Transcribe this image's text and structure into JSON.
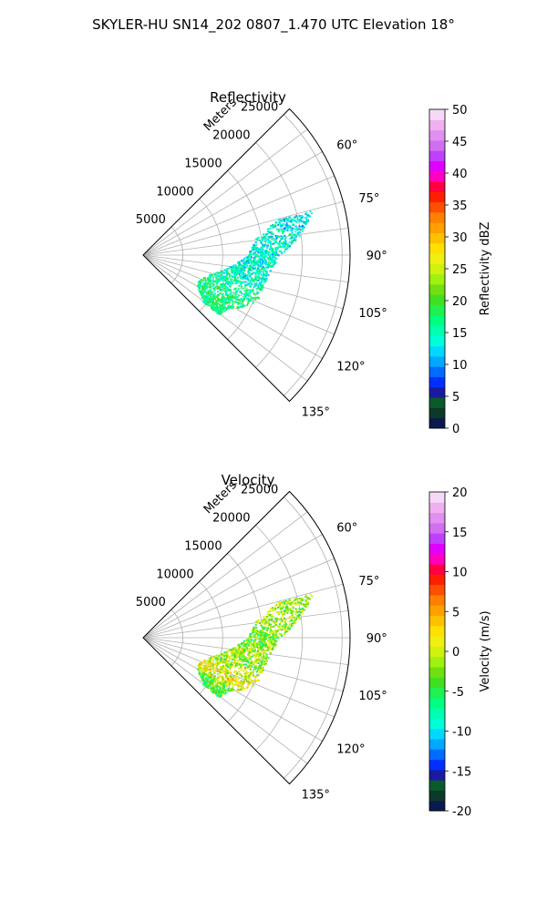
{
  "figure": {
    "title": "SKYLER-HU  SN14_202  0807_1.470 UTC Elevation 18°"
  },
  "chart_data": [
    {
      "type": "polar-sector",
      "title": "Reflectivity",
      "range_label": "Meters",
      "range_ticks": [
        5000,
        10000,
        15000,
        20000,
        25000
      ],
      "range_max": 26000,
      "azimuth_range": [
        45,
        135
      ],
      "azimuth_ticks": [
        60,
        75,
        90,
        105,
        120,
        135
      ],
      "colorbar": {
        "label": "Reflectivity dBZ",
        "range": [
          0,
          50
        ],
        "ticks": [
          0,
          5,
          10,
          15,
          20,
          25,
          30,
          35,
          40,
          45,
          50
        ],
        "colors": [
          "#0a1a4e",
          "#0c3a2a",
          "#0a5a2a",
          "#1a1aa0",
          "#0030ff",
          "#006cff",
          "#00a8ff",
          "#00d8ff",
          "#00ffd8",
          "#00ffb0",
          "#00ff80",
          "#20f050",
          "#40e020",
          "#70e010",
          "#a0f010",
          "#d0f010",
          "#f0f010",
          "#ffe000",
          "#ffc000",
          "#ffa000",
          "#ff8000",
          "#ff5000",
          "#ff2000",
          "#ff0040",
          "#ff00c0",
          "#e000ff",
          "#c040ff",
          "#d070f0",
          "#e090f0",
          "#f0b0f0",
          "#f8d8f8"
        ]
      },
      "echo_band": [
        {
          "azimuth": 75,
          "range_from": 17000,
          "range_to": 22000,
          "value": 13
        },
        {
          "azimuth": 82,
          "range_from": 14000,
          "range_to": 20000,
          "value": 14
        },
        {
          "azimuth": 90,
          "range_from": 13000,
          "range_to": 17000,
          "value": 14
        },
        {
          "azimuth": 97,
          "range_from": 11000,
          "range_to": 16000,
          "value": 14
        },
        {
          "azimuth": 104,
          "range_from": 9000,
          "range_to": 15500,
          "value": 15
        },
        {
          "azimuth": 110,
          "range_from": 8000,
          "range_to": 15500,
          "value": 16
        },
        {
          "azimuth": 116,
          "range_from": 7500,
          "range_to": 14500,
          "value": 17
        },
        {
          "azimuth": 122,
          "range_from": 8000,
          "range_to": 12500,
          "value": 18
        },
        {
          "azimuth": 128,
          "range_from": 9500,
          "range_to": 12000,
          "value": 16
        }
      ]
    },
    {
      "type": "polar-sector",
      "title": "Velocity",
      "range_label": "Meters",
      "range_ticks": [
        5000,
        10000,
        15000,
        20000,
        25000
      ],
      "range_max": 26000,
      "azimuth_range": [
        45,
        135
      ],
      "azimuth_ticks": [
        60,
        75,
        90,
        105,
        120,
        135
      ],
      "colorbar": {
        "label": "Velocity (m/s)",
        "range": [
          -20,
          20
        ],
        "ticks": [
          -20,
          -15,
          -10,
          -5,
          0,
          5,
          10,
          15,
          20
        ],
        "colors": [
          "#0a1a4e",
          "#0c3a2a",
          "#0a5a2a",
          "#1a1aa0",
          "#0030ff",
          "#006cff",
          "#00a8ff",
          "#00d8ff",
          "#00ffd8",
          "#00ffb0",
          "#00ff80",
          "#20f050",
          "#40e020",
          "#70e010",
          "#a0f010",
          "#d0f010",
          "#f0f010",
          "#ffe000",
          "#ffc000",
          "#ffa000",
          "#ff8000",
          "#ff5000",
          "#ff2000",
          "#ff0040",
          "#ff00c0",
          "#e000ff",
          "#c040ff",
          "#d070f0",
          "#e090f0",
          "#f0b0f0",
          "#f8d8f8"
        ]
      },
      "echo_band": [
        {
          "azimuth": 75,
          "range_from": 17000,
          "range_to": 22000,
          "value": -1
        },
        {
          "azimuth": 82,
          "range_from": 14000,
          "range_to": 20000,
          "value": -1
        },
        {
          "azimuth": 90,
          "range_from": 13000,
          "range_to": 17000,
          "value": -3
        },
        {
          "azimuth": 97,
          "range_from": 11000,
          "range_to": 16000,
          "value": -1
        },
        {
          "azimuth": 104,
          "range_from": 9000,
          "range_to": 15500,
          "value": -2
        },
        {
          "azimuth": 110,
          "range_from": 8000,
          "range_to": 15500,
          "value": 0
        },
        {
          "azimuth": 116,
          "range_from": 7500,
          "range_to": 14500,
          "value": 2
        },
        {
          "azimuth": 122,
          "range_from": 8000,
          "range_to": 12500,
          "value": -3
        },
        {
          "azimuth": 128,
          "range_from": 9500,
          "range_to": 12000,
          "value": -5
        }
      ]
    }
  ]
}
